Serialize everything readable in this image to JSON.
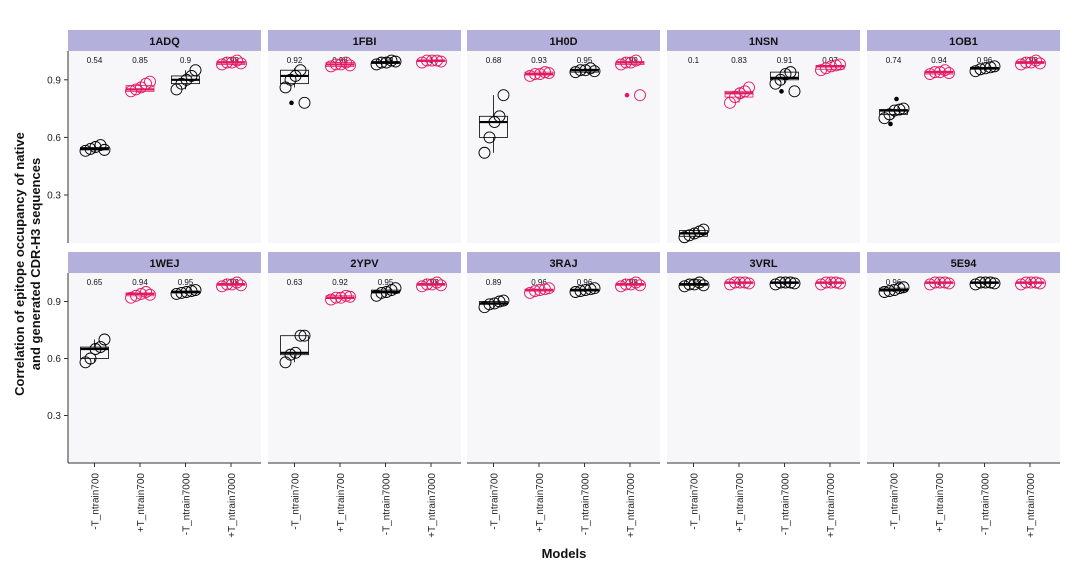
{
  "chart_data": {
    "type": "box",
    "xlabel": "Models",
    "ylabel_lines": [
      "Correlation of epitope occupancy of native",
      "and generated CDR-H3 sequences"
    ],
    "categories": [
      "-T_ntrain700",
      "+T_ntrain700",
      "-T_ntrain7000",
      "+T_ntrain7000"
    ],
    "yticks": [
      0.3,
      0.6,
      0.9
    ],
    "ylim": [
      0.05,
      1.05
    ],
    "colors": {
      "-T": "#000000",
      "+T": "#e31a63"
    },
    "strip_color": "#b3b0dc",
    "panel_bg": "#f7f7fa",
    "panels": [
      {
        "title": "1ADQ",
        "medians": [
          "0.54",
          "0.85",
          "0.9",
          "0.99"
        ],
        "groups": [
          {
            "q1": 0.535,
            "med": 0.54,
            "q3": 0.548,
            "lo": 0.525,
            "hi": 0.56,
            "points": [
              0.53,
              0.54,
              0.55,
              0.56,
              0.535
            ],
            "outliers": []
          },
          {
            "q1": 0.84,
            "med": 0.85,
            "q3": 0.87,
            "lo": 0.83,
            "hi": 0.89,
            "points": [
              0.84,
              0.85,
              0.86,
              0.88,
              0.89
            ],
            "outliers": []
          },
          {
            "q1": 0.88,
            "med": 0.9,
            "q3": 0.92,
            "lo": 0.85,
            "hi": 0.95,
            "points": [
              0.85,
              0.88,
              0.9,
              0.92,
              0.95
            ],
            "outliers": []
          },
          {
            "q1": 0.98,
            "med": 0.99,
            "q3": 0.995,
            "lo": 0.975,
            "hi": 1.0,
            "points": [
              0.98,
              0.99,
              0.99,
              1.0,
              0.985
            ],
            "outliers": []
          }
        ]
      },
      {
        "title": "1FBI",
        "medians": [
          "0.92",
          "0.98",
          "0.99",
          "1"
        ],
        "groups": [
          {
            "q1": 0.88,
            "med": 0.92,
            "q3": 0.95,
            "lo": 0.86,
            "hi": 0.96,
            "points": [
              0.86,
              0.9,
              0.92,
              0.95,
              0.78
            ],
            "outliers": [
              0.78
            ]
          },
          {
            "q1": 0.97,
            "med": 0.98,
            "q3": 0.99,
            "lo": 0.965,
            "hi": 0.995,
            "points": [
              0.97,
              0.98,
              0.98,
              0.99,
              0.975
            ],
            "outliers": []
          },
          {
            "q1": 0.985,
            "med": 0.99,
            "q3": 0.995,
            "lo": 0.98,
            "hi": 1.0,
            "points": [
              0.98,
              0.99,
              0.99,
              1.0,
              0.995
            ],
            "outliers": []
          },
          {
            "q1": 0.995,
            "med": 1.0,
            "q3": 1.0,
            "lo": 0.99,
            "hi": 1.0,
            "points": [
              0.99,
              1.0,
              1.0,
              1.0,
              0.995
            ],
            "outliers": []
          }
        ]
      },
      {
        "title": "1H0D",
        "medians": [
          "0.68",
          "0.93",
          "0.95",
          "0.99"
        ],
        "groups": [
          {
            "q1": 0.6,
            "med": 0.68,
            "q3": 0.71,
            "lo": 0.52,
            "hi": 0.82,
            "points": [
              0.52,
              0.6,
              0.68,
              0.71,
              0.82
            ],
            "outliers": []
          },
          {
            "q1": 0.925,
            "med": 0.93,
            "q3": 0.94,
            "lo": 0.92,
            "hi": 0.945,
            "points": [
              0.92,
              0.93,
              0.93,
              0.94,
              0.935
            ],
            "outliers": []
          },
          {
            "q1": 0.94,
            "med": 0.95,
            "q3": 0.955,
            "lo": 0.935,
            "hi": 0.96,
            "points": [
              0.94,
              0.95,
              0.95,
              0.96,
              0.945
            ],
            "outliers": []
          },
          {
            "q1": 0.98,
            "med": 0.99,
            "q3": 0.995,
            "lo": 0.975,
            "hi": 1.0,
            "points": [
              0.98,
              0.99,
              0.99,
              1.0,
              0.82
            ],
            "outliers": [
              0.82
            ]
          }
        ]
      },
      {
        "title": "1NSN",
        "medians": [
          "0.1",
          "0.83",
          "0.91",
          "0.97"
        ],
        "groups": [
          {
            "q1": 0.085,
            "med": 0.1,
            "q3": 0.115,
            "lo": 0.075,
            "hi": 0.125,
            "points": [
              0.08,
              0.09,
              0.1,
              0.11,
              0.12
            ],
            "outliers": []
          },
          {
            "q1": 0.81,
            "med": 0.83,
            "q3": 0.84,
            "lo": 0.78,
            "hi": 0.86,
            "points": [
              0.78,
              0.81,
              0.83,
              0.84,
              0.86
            ],
            "outliers": []
          },
          {
            "q1": 0.9,
            "med": 0.91,
            "q3": 0.94,
            "lo": 0.88,
            "hi": 0.95,
            "points": [
              0.88,
              0.9,
              0.93,
              0.94,
              0.84
            ],
            "outliers": [
              0.84
            ]
          },
          {
            "q1": 0.955,
            "med": 0.97,
            "q3": 0.975,
            "lo": 0.95,
            "hi": 0.98,
            "points": [
              0.95,
              0.96,
              0.97,
              0.975,
              0.98
            ],
            "outliers": []
          }
        ]
      },
      {
        "title": "1OB1",
        "medians": [
          "0.74",
          "0.94",
          "0.96",
          "0.99"
        ],
        "groups": [
          {
            "q1": 0.72,
            "med": 0.74,
            "q3": 0.745,
            "lo": 0.7,
            "hi": 0.75,
            "points": [
              0.7,
              0.72,
              0.74,
              0.745,
              0.75
            ],
            "outliers": [
              0.67,
              0.8
            ]
          },
          {
            "q1": 0.93,
            "med": 0.94,
            "q3": 0.945,
            "lo": 0.925,
            "hi": 0.95,
            "points": [
              0.93,
              0.94,
              0.94,
              0.95,
              0.935
            ],
            "outliers": []
          },
          {
            "q1": 0.955,
            "med": 0.96,
            "q3": 0.965,
            "lo": 0.945,
            "hi": 0.97,
            "points": [
              0.945,
              0.955,
              0.96,
              0.965,
              0.97
            ],
            "outliers": []
          },
          {
            "q1": 0.985,
            "med": 0.99,
            "q3": 0.995,
            "lo": 0.98,
            "hi": 1.0,
            "points": [
              0.98,
              0.99,
              0.99,
              1.0,
              0.985
            ],
            "outliers": []
          }
        ]
      },
      {
        "title": "1WEJ",
        "medians": [
          "0.65",
          "0.94",
          "0.95",
          "0.99"
        ],
        "groups": [
          {
            "q1": 0.6,
            "med": 0.65,
            "q3": 0.66,
            "lo": 0.58,
            "hi": 0.7,
            "points": [
              0.58,
              0.6,
              0.65,
              0.66,
              0.7
            ],
            "outliers": []
          },
          {
            "q1": 0.93,
            "med": 0.94,
            "q3": 0.945,
            "lo": 0.92,
            "hi": 0.95,
            "points": [
              0.92,
              0.93,
              0.94,
              0.95,
              0.935
            ],
            "outliers": []
          },
          {
            "q1": 0.945,
            "med": 0.95,
            "q3": 0.955,
            "lo": 0.94,
            "hi": 0.96,
            "points": [
              0.94,
              0.945,
              0.95,
              0.955,
              0.96
            ],
            "outliers": []
          },
          {
            "q1": 0.985,
            "med": 0.99,
            "q3": 0.995,
            "lo": 0.98,
            "hi": 1.0,
            "points": [
              0.98,
              0.99,
              0.99,
              1.0,
              0.985
            ],
            "outliers": []
          }
        ]
      },
      {
        "title": "2YPV",
        "medians": [
          "0.63",
          "0.92",
          "0.95",
          "0.99"
        ],
        "groups": [
          {
            "q1": 0.62,
            "med": 0.63,
            "q3": 0.72,
            "lo": 0.58,
            "hi": 0.72,
            "points": [
              0.58,
              0.62,
              0.63,
              0.72,
              0.72
            ],
            "outliers": []
          },
          {
            "q1": 0.915,
            "med": 0.92,
            "q3": 0.93,
            "lo": 0.91,
            "hi": 0.935,
            "points": [
              0.91,
              0.92,
              0.92,
              0.93,
              0.925
            ],
            "outliers": []
          },
          {
            "q1": 0.945,
            "med": 0.95,
            "q3": 0.96,
            "lo": 0.93,
            "hi": 0.97,
            "points": [
              0.93,
              0.945,
              0.95,
              0.96,
              0.97
            ],
            "outliers": []
          },
          {
            "q1": 0.985,
            "med": 0.99,
            "q3": 0.995,
            "lo": 0.98,
            "hi": 1.0,
            "points": [
              0.98,
              0.99,
              0.99,
              1.0,
              0.985
            ],
            "outliers": []
          }
        ]
      },
      {
        "title": "3RAJ",
        "medians": [
          "0.89",
          "0.96",
          "0.96",
          "0.99"
        ],
        "groups": [
          {
            "q1": 0.885,
            "med": 0.89,
            "q3": 0.9,
            "lo": 0.87,
            "hi": 0.905,
            "points": [
              0.87,
              0.885,
              0.89,
              0.9,
              0.905
            ],
            "outliers": []
          },
          {
            "q1": 0.955,
            "med": 0.96,
            "q3": 0.965,
            "lo": 0.945,
            "hi": 0.97,
            "points": [
              0.945,
              0.955,
              0.96,
              0.965,
              0.97
            ],
            "outliers": []
          },
          {
            "q1": 0.955,
            "med": 0.96,
            "q3": 0.965,
            "lo": 0.95,
            "hi": 0.97,
            "points": [
              0.95,
              0.955,
              0.96,
              0.965,
              0.97
            ],
            "outliers": []
          },
          {
            "q1": 0.985,
            "med": 0.99,
            "q3": 0.995,
            "lo": 0.98,
            "hi": 1.0,
            "points": [
              0.98,
              0.99,
              0.99,
              1.0,
              0.985
            ],
            "outliers": []
          }
        ]
      },
      {
        "title": "3VRL",
        "medians": [
          "0.99",
          "1",
          "1",
          "1"
        ],
        "groups": [
          {
            "q1": 0.985,
            "med": 0.99,
            "q3": 0.995,
            "lo": 0.98,
            "hi": 1.0,
            "points": [
              0.98,
              0.99,
              0.99,
              1.0,
              0.985
            ],
            "outliers": []
          },
          {
            "q1": 0.995,
            "med": 1.0,
            "q3": 1.0,
            "lo": 0.99,
            "hi": 1.0,
            "points": [
              0.99,
              1.0,
              1.0,
              1.0,
              0.995
            ],
            "outliers": []
          },
          {
            "q1": 0.995,
            "med": 1.0,
            "q3": 1.0,
            "lo": 0.99,
            "hi": 1.0,
            "points": [
              0.99,
              1.0,
              1.0,
              1.0,
              0.995
            ],
            "outliers": []
          },
          {
            "q1": 0.995,
            "med": 1.0,
            "q3": 1.0,
            "lo": 0.99,
            "hi": 1.0,
            "points": [
              0.99,
              1.0,
              1.0,
              1.0,
              0.995
            ],
            "outliers": []
          }
        ]
      },
      {
        "title": "5E94",
        "medians": [
          "0.96",
          "1",
          "1",
          "1"
        ],
        "groups": [
          {
            "q1": 0.955,
            "med": 0.96,
            "q3": 0.97,
            "lo": 0.95,
            "hi": 0.975,
            "points": [
              0.95,
              0.955,
              0.96,
              0.97,
              0.975
            ],
            "outliers": []
          },
          {
            "q1": 0.995,
            "med": 1.0,
            "q3": 1.0,
            "lo": 0.99,
            "hi": 1.0,
            "points": [
              0.99,
              1.0,
              1.0,
              1.0,
              0.995
            ],
            "outliers": []
          },
          {
            "q1": 0.995,
            "med": 1.0,
            "q3": 1.0,
            "lo": 0.99,
            "hi": 1.0,
            "points": [
              0.99,
              1.0,
              1.0,
              1.0,
              0.995
            ],
            "outliers": []
          },
          {
            "q1": 0.995,
            "med": 1.0,
            "q3": 1.0,
            "lo": 0.99,
            "hi": 1.0,
            "points": [
              0.99,
              1.0,
              1.0,
              1.0,
              0.995
            ],
            "outliers": []
          }
        ]
      }
    ]
  }
}
